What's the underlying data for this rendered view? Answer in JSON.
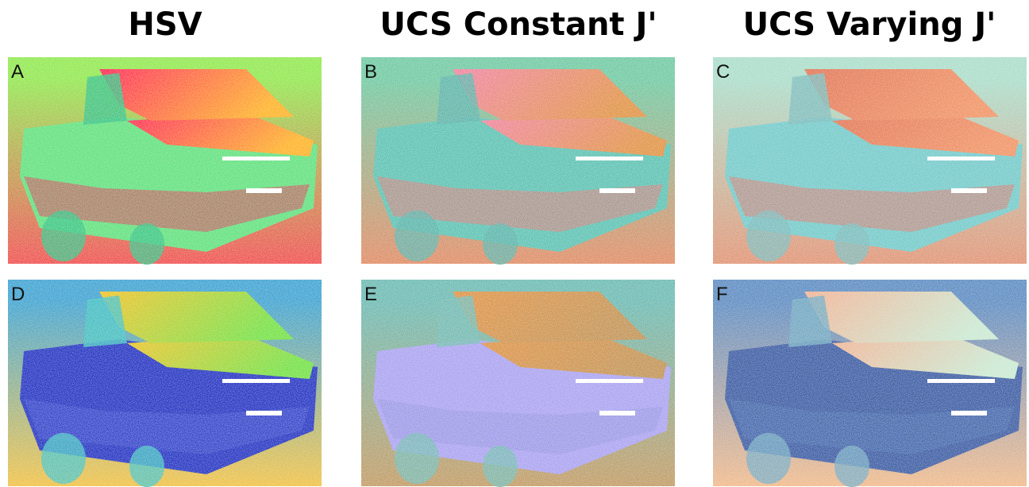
{
  "columns": [
    {
      "title": "HSV"
    },
    {
      "title": "UCS Constant J'"
    },
    {
      "title": "UCS Varying J'"
    }
  ],
  "panels": [
    {
      "label": "A"
    },
    {
      "label": "B"
    },
    {
      "label": "C"
    },
    {
      "label": "D"
    },
    {
      "label": "E"
    },
    {
      "label": "F"
    }
  ]
}
